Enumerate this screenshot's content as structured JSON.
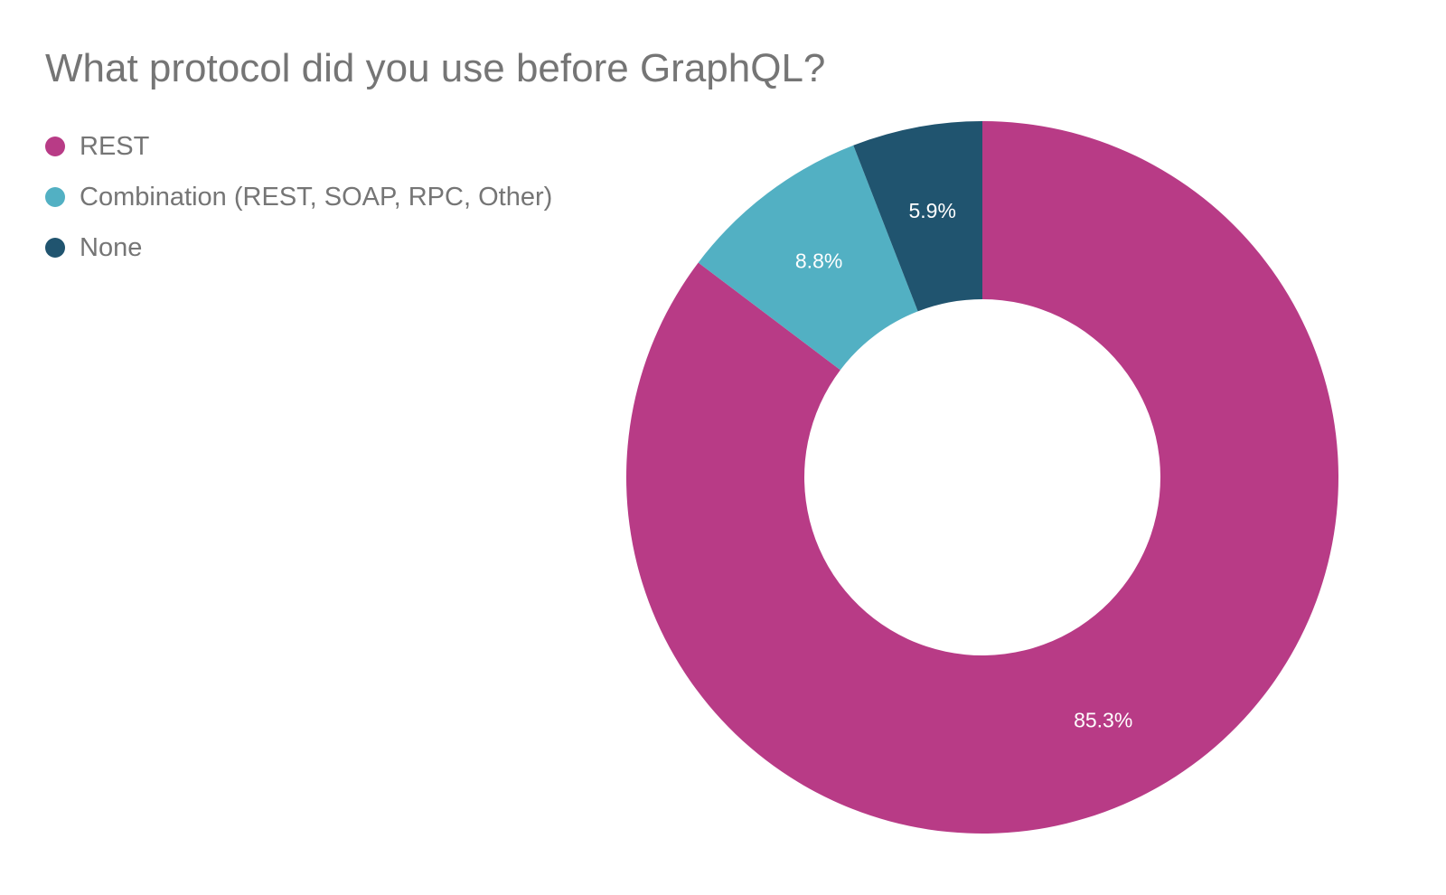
{
  "chart_data": {
    "type": "pie",
    "variant": "donut",
    "title": "What protocol did you use before GraphQL?",
    "legend_position": "top-left",
    "series": [
      {
        "name": "REST",
        "value": 85.3,
        "label": "85.3%",
        "color": "#b83b86"
      },
      {
        "name": "Combination (REST, SOAP, RPC, Other)",
        "value": 8.8,
        "label": "8.8%",
        "color": "#52b0c3"
      },
      {
        "name": "None",
        "value": 5.9,
        "label": "5.9%",
        "color": "#20546f"
      }
    ]
  }
}
